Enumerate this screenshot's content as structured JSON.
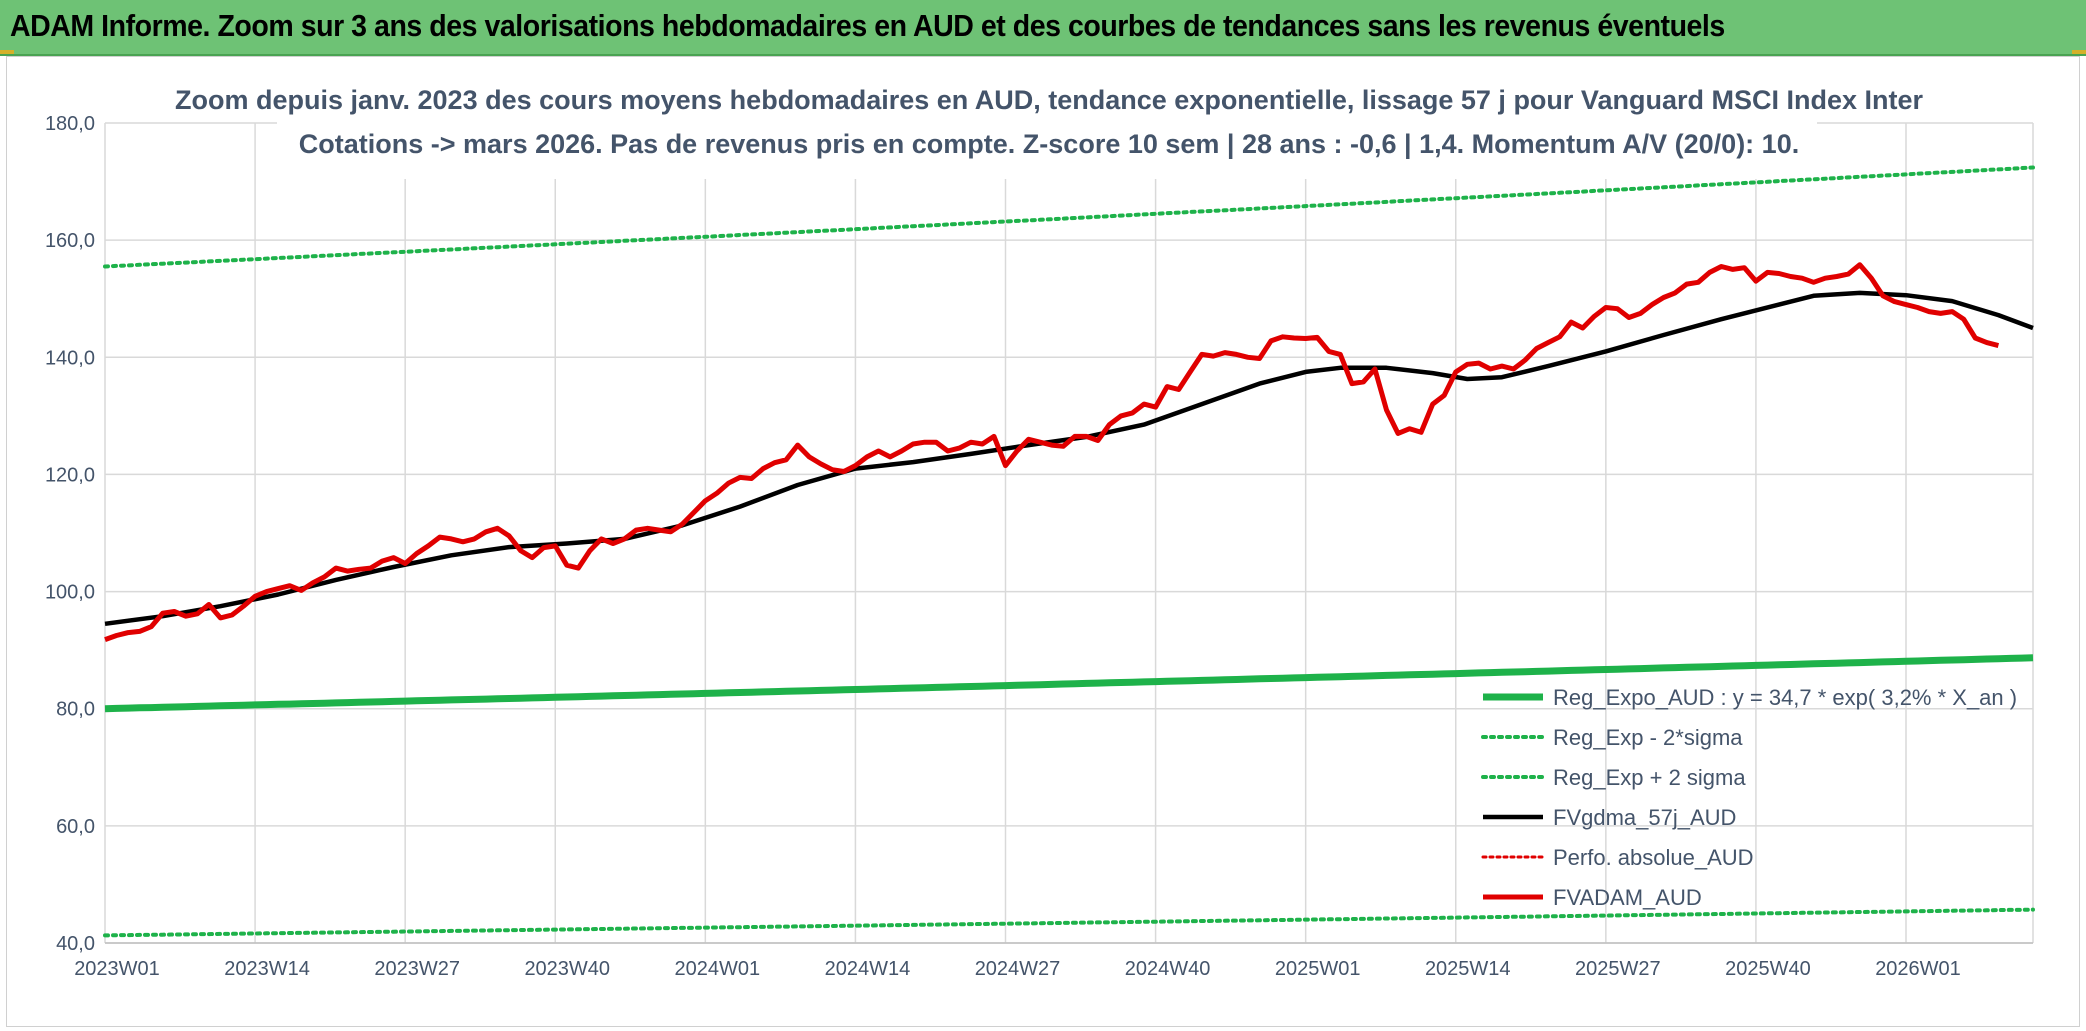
{
  "header": {
    "title": "ADAM Informe. Zoom sur 3 ans des valorisations hebdomadaires en AUD et des courbes de tendances sans les revenus éventuels"
  },
  "colors": {
    "banner": "#6ec275",
    "reg_expo": "#1eb24a",
    "bands": "#1eb24a",
    "gdma": "#000000",
    "perfo": "#e00000",
    "fvadam": "#e00000",
    "grid": "#d9d9d9",
    "text": "#44546a"
  },
  "chart_data": {
    "type": "line",
    "subtitle_lines": [
      "Zoom depuis janv. 2023 des cours moyens hebdomadaires en AUD, tendance exponentielle, lissage 57 j pour Vanguard MSCI Index Inter",
      "Cotations -> mars 2026. Pas de revenus pris en compte. Z-score 10 sem | 28 ans : -0,6 | 1,4. Momentum A/V (20/0): 10."
    ],
    "ylim": [
      40,
      180
    ],
    "yticks": [
      "40,0",
      "60,0",
      "80,0",
      "100,0",
      "120,0",
      "140,0",
      "160,0",
      "180,0"
    ],
    "x_count": 168,
    "xticks": [
      {
        "i": 0,
        "label": "2023W01"
      },
      {
        "i": 13,
        "label": "2023W14"
      },
      {
        "i": 26,
        "label": "2023W27"
      },
      {
        "i": 39,
        "label": "2023W40"
      },
      {
        "i": 52,
        "label": "2024W01"
      },
      {
        "i": 65,
        "label": "2024W14"
      },
      {
        "i": 78,
        "label": "2024W27"
      },
      {
        "i": 91,
        "label": "2024W40"
      },
      {
        "i": 104,
        "label": "2025W01"
      },
      {
        "i": 117,
        "label": "2025W14"
      },
      {
        "i": 130,
        "label": "2025W27"
      },
      {
        "i": 143,
        "label": "2025W40"
      },
      {
        "i": 156,
        "label": "2026W01"
      }
    ],
    "grid": true,
    "legend_position": "bottom-right",
    "series": [
      {
        "name": "Reg_Expo_AUD : y = 34,7 * exp( 3,2% * X_an )",
        "style": "thick",
        "start": 80.0,
        "end": 88.7
      },
      {
        "name": "Reg_Exp - 2*sigma",
        "style": "dotted",
        "start": 41.3,
        "end": 45.7
      },
      {
        "name": "Reg_Exp + 2 sigma",
        "style": "dotted",
        "start": 155.5,
        "end": 172.4
      },
      {
        "name": "FVgdma_57j_AUD",
        "style": "solid-black",
        "points": [
          [
            0,
            94.5
          ],
          [
            5,
            95.8
          ],
          [
            10,
            97.5
          ],
          [
            15,
            99.5
          ],
          [
            20,
            102.0
          ],
          [
            25,
            104.2
          ],
          [
            30,
            106.2
          ],
          [
            35,
            107.6
          ],
          [
            40,
            108.2
          ],
          [
            45,
            109.0
          ],
          [
            50,
            111.3
          ],
          [
            55,
            114.5
          ],
          [
            60,
            118.2
          ],
          [
            65,
            121.0
          ],
          [
            70,
            122.1
          ],
          [
            75,
            123.5
          ],
          [
            80,
            125.0
          ],
          [
            85,
            126.4
          ],
          [
            90,
            128.5
          ],
          [
            95,
            132.0
          ],
          [
            100,
            135.5
          ],
          [
            104,
            137.5
          ],
          [
            107,
            138.2
          ],
          [
            111,
            138.2
          ],
          [
            115,
            137.3
          ],
          [
            118,
            136.3
          ],
          [
            121,
            136.6
          ],
          [
            125,
            138.5
          ],
          [
            130,
            141.0
          ],
          [
            135,
            143.8
          ],
          [
            140,
            146.5
          ],
          [
            145,
            149.0
          ],
          [
            148,
            150.5
          ],
          [
            152,
            151.0
          ],
          [
            156,
            150.6
          ],
          [
            160,
            149.6
          ],
          [
            164,
            147.2
          ],
          [
            167,
            145.0
          ]
        ]
      },
      {
        "name": "Perfo. absolue_AUD",
        "style": "dotted-red"
      },
      {
        "name": "FVADAM_AUD",
        "style": "solid-red",
        "points": [
          [
            0,
            91.8
          ],
          [
            1,
            92.5
          ],
          [
            2,
            93.0
          ],
          [
            3,
            93.2
          ],
          [
            4,
            94.0
          ],
          [
            5,
            96.3
          ],
          [
            6,
            96.6
          ],
          [
            7,
            95.8
          ],
          [
            8,
            96.2
          ],
          [
            9,
            97.8
          ],
          [
            10,
            95.5
          ],
          [
            11,
            96.0
          ],
          [
            12,
            97.5
          ],
          [
            13,
            99.2
          ],
          [
            14,
            100.0
          ],
          [
            15,
            100.5
          ],
          [
            16,
            101.0
          ],
          [
            17,
            100.2
          ],
          [
            18,
            101.5
          ],
          [
            19,
            102.5
          ],
          [
            20,
            104.0
          ],
          [
            21,
            103.5
          ],
          [
            22,
            103.8
          ],
          [
            23,
            104.0
          ],
          [
            24,
            105.2
          ],
          [
            25,
            105.8
          ],
          [
            26,
            104.8
          ],
          [
            27,
            106.5
          ],
          [
            28,
            107.8
          ],
          [
            29,
            109.3
          ],
          [
            30,
            109.0
          ],
          [
            31,
            108.5
          ],
          [
            32,
            109.0
          ],
          [
            33,
            110.2
          ],
          [
            34,
            110.8
          ],
          [
            35,
            109.5
          ],
          [
            36,
            107.0
          ],
          [
            37,
            105.8
          ],
          [
            38,
            107.5
          ],
          [
            39,
            107.8
          ],
          [
            40,
            104.5
          ],
          [
            41,
            104.0
          ],
          [
            42,
            107.0
          ],
          [
            43,
            109.0
          ],
          [
            44,
            108.2
          ],
          [
            45,
            109.0
          ],
          [
            46,
            110.5
          ],
          [
            47,
            110.8
          ],
          [
            48,
            110.5
          ],
          [
            49,
            110.2
          ],
          [
            50,
            111.5
          ],
          [
            51,
            113.5
          ],
          [
            52,
            115.5
          ],
          [
            53,
            116.8
          ],
          [
            54,
            118.5
          ],
          [
            55,
            119.5
          ],
          [
            56,
            119.3
          ],
          [
            57,
            121.0
          ],
          [
            58,
            122.0
          ],
          [
            59,
            122.5
          ],
          [
            60,
            125.0
          ],
          [
            61,
            123.0
          ],
          [
            62,
            121.8
          ],
          [
            63,
            120.8
          ],
          [
            64,
            120.5
          ],
          [
            65,
            121.5
          ],
          [
            66,
            123.0
          ],
          [
            67,
            124.0
          ],
          [
            68,
            123.0
          ],
          [
            69,
            124.0
          ],
          [
            70,
            125.2
          ],
          [
            71,
            125.5
          ],
          [
            72,
            125.5
          ],
          [
            73,
            124.0
          ],
          [
            74,
            124.5
          ],
          [
            75,
            125.5
          ],
          [
            76,
            125.2
          ],
          [
            77,
            126.5
          ],
          [
            78,
            121.5
          ],
          [
            79,
            124.0
          ],
          [
            80,
            126.0
          ],
          [
            81,
            125.5
          ],
          [
            82,
            125.0
          ],
          [
            83,
            124.8
          ],
          [
            84,
            126.5
          ],
          [
            85,
            126.5
          ],
          [
            86,
            125.8
          ],
          [
            87,
            128.5
          ],
          [
            88,
            130.0
          ],
          [
            89,
            130.5
          ],
          [
            90,
            132.0
          ],
          [
            91,
            131.5
          ],
          [
            92,
            135.0
          ],
          [
            93,
            134.5
          ],
          [
            94,
            137.5
          ],
          [
            95,
            140.5
          ],
          [
            96,
            140.2
          ],
          [
            97,
            140.8
          ],
          [
            98,
            140.5
          ],
          [
            99,
            140.0
          ],
          [
            100,
            139.8
          ],
          [
            101,
            142.8
          ],
          [
            102,
            143.5
          ],
          [
            103,
            143.3
          ],
          [
            104,
            143.2
          ],
          [
            105,
            143.4
          ],
          [
            106,
            141.0
          ],
          [
            107,
            140.5
          ],
          [
            108,
            135.5
          ],
          [
            109,
            135.8
          ],
          [
            110,
            138.0
          ],
          [
            111,
            131.0
          ],
          [
            112,
            127.0
          ],
          [
            113,
            127.8
          ],
          [
            114,
            127.2
          ],
          [
            115,
            132.0
          ],
          [
            116,
            133.5
          ],
          [
            117,
            137.5
          ],
          [
            118,
            138.8
          ],
          [
            119,
            139.0
          ],
          [
            120,
            138.0
          ],
          [
            121,
            138.5
          ],
          [
            122,
            138.0
          ],
          [
            123,
            139.5
          ],
          [
            124,
            141.5
          ],
          [
            125,
            142.5
          ],
          [
            126,
            143.5
          ],
          [
            127,
            146.0
          ],
          [
            128,
            145.0
          ],
          [
            129,
            147.0
          ],
          [
            130,
            148.5
          ],
          [
            131,
            148.3
          ],
          [
            132,
            146.8
          ],
          [
            133,
            147.5
          ],
          [
            134,
            149.0
          ],
          [
            135,
            150.2
          ],
          [
            136,
            151.0
          ],
          [
            137,
            152.5
          ],
          [
            138,
            152.8
          ],
          [
            139,
            154.5
          ],
          [
            140,
            155.5
          ],
          [
            141,
            155.0
          ],
          [
            142,
            155.3
          ],
          [
            143,
            153.0
          ],
          [
            144,
            154.5
          ],
          [
            145,
            154.3
          ],
          [
            146,
            153.8
          ],
          [
            147,
            153.5
          ],
          [
            148,
            152.8
          ],
          [
            149,
            153.5
          ],
          [
            150,
            153.8
          ],
          [
            151,
            154.2
          ],
          [
            152,
            155.8
          ],
          [
            153,
            153.5
          ],
          [
            154,
            150.5
          ],
          [
            155,
            149.5
          ],
          [
            156,
            149.0
          ],
          [
            157,
            148.5
          ],
          [
            158,
            147.8
          ],
          [
            159,
            147.5
          ],
          [
            160,
            147.8
          ],
          [
            161,
            146.5
          ],
          [
            162,
            143.3
          ],
          [
            163,
            142.5
          ],
          [
            164,
            142.0
          ]
        ]
      }
    ]
  }
}
